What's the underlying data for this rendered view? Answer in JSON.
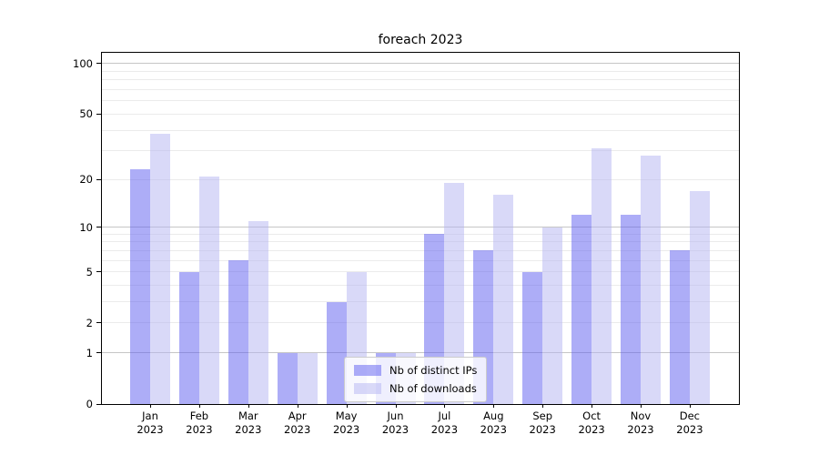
{
  "title": "foreach 2023",
  "chart_data": {
    "type": "bar",
    "title": "foreach 2023",
    "categories": [
      "Jan",
      "Feb",
      "Mar",
      "Apr",
      "May",
      "Jun",
      "Jul",
      "Aug",
      "Sep",
      "Oct",
      "Nov",
      "Dec"
    ],
    "category_sublabel": "2023",
    "series": [
      {
        "name": "Nb of distinct IPs",
        "color": "rgba(91,91,240,0.5)",
        "values": [
          23,
          5,
          6,
          1,
          3,
          1,
          9,
          7,
          5,
          12,
          12,
          7
        ]
      },
      {
        "name": "Nb of downloads",
        "color": "rgba(179,179,241,0.5)",
        "values": [
          38,
          21,
          11,
          1,
          5,
          1,
          19,
          16,
          10,
          31,
          28,
          17
        ]
      }
    ],
    "yscale": "log10(1+v)",
    "ylim": [
      0,
      117
    ],
    "ytick_labels": [
      "100",
      "50",
      "20",
      "10",
      "5",
      "2",
      "1",
      "0"
    ],
    "ytick_values": [
      100,
      50,
      20,
      10,
      5,
      2,
      1,
      0
    ],
    "gridline_values": [
      1,
      2,
      3,
      4,
      5,
      6,
      7,
      8,
      9,
      10,
      20,
      30,
      40,
      50,
      60,
      70,
      80,
      90,
      100
    ],
    "major_gridline_values": [
      1,
      10,
      100
    ],
    "grid_minor_color": "#ebebeb",
    "grid_major_color": "#c6c6c6",
    "spine_color": "#000000",
    "legend_position": "bottom-center",
    "legend_border_color": "#cccccc"
  }
}
